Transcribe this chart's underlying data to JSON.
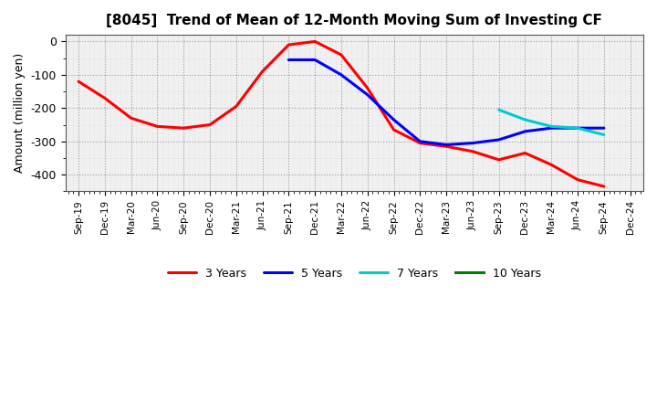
{
  "title": "[8045]  Trend of Mean of 12-Month Moving Sum of Investing CF",
  "ylabel": "Amount (million yen)",
  "ylim": [
    -450,
    20
  ],
  "yticks": [
    0,
    -100,
    -200,
    -300,
    -400
  ],
  "background_color": "#ffffff",
  "grid_color_major": "#999999",
  "grid_color_minor": "#cccccc",
  "x_labels": [
    "Sep-19",
    "Dec-19",
    "Mar-20",
    "Jun-20",
    "Sep-20",
    "Dec-20",
    "Mar-21",
    "Jun-21",
    "Sep-21",
    "Dec-21",
    "Mar-22",
    "Jun-22",
    "Sep-22",
    "Dec-22",
    "Mar-23",
    "Jun-23",
    "Sep-23",
    "Dec-23",
    "Mar-24",
    "Jun-24",
    "Sep-24",
    "Dec-24"
  ],
  "series": {
    "3 Years": {
      "color": "#ff0000",
      "data_x": [
        0,
        1,
        2,
        3,
        4,
        5,
        6,
        7,
        8,
        9,
        10,
        11,
        12,
        13,
        14,
        15,
        16,
        17,
        18,
        19,
        20
      ],
      "data_y": [
        -120,
        -170,
        -230,
        -255,
        -260,
        -250,
        -195,
        -90,
        -10,
        0,
        -40,
        -140,
        -265,
        -305,
        -315,
        -330,
        -355,
        -335,
        -370,
        -415,
        -435
      ]
    },
    "5 Years": {
      "color": "#0000ff",
      "data_x": [
        8,
        9,
        10,
        11,
        12,
        13,
        14,
        15,
        16,
        17,
        18,
        19,
        20
      ],
      "data_y": [
        -55,
        -55,
        -100,
        -160,
        -235,
        -300,
        -310,
        -305,
        -295,
        -270,
        -260,
        -260,
        -260
      ]
    },
    "7 Years": {
      "color": "#00cccc",
      "data_x": [
        16,
        17,
        18,
        19,
        20
      ],
      "data_y": [
        -205,
        -235,
        -255,
        -260,
        -280
      ]
    },
    "10 Years": {
      "color": "#008000",
      "data_x": [],
      "data_y": []
    }
  },
  "legend_order": [
    "3 Years",
    "5 Years",
    "7 Years",
    "10 Years"
  ]
}
